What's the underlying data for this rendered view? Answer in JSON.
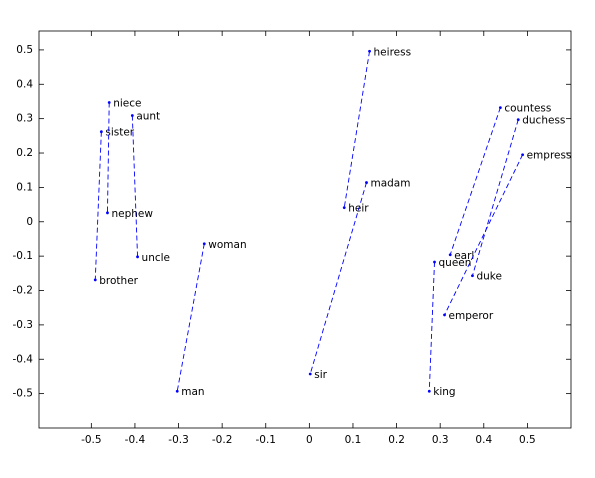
{
  "chart_data": {
    "type": "scatter",
    "color": "#0000ff",
    "xlim": [
      -0.62,
      0.6
    ],
    "ylim": [
      -0.6,
      0.555
    ],
    "xticks": [
      -0.5,
      -0.4,
      -0.3,
      -0.2,
      -0.1,
      0,
      0.1,
      0.2,
      0.3,
      0.4,
      0.5
    ],
    "yticks": [
      -0.5,
      -0.4,
      -0.3,
      -0.2,
      -0.1,
      0,
      0.1,
      0.2,
      0.3,
      0.4,
      0.5
    ],
    "series": [
      {
        "labels": [
          "sister",
          "brother"
        ],
        "x": [
          -0.477,
          -0.491
        ],
        "y": [
          0.262,
          -0.169
        ]
      },
      {
        "labels": [
          "niece",
          "nephew"
        ],
        "x": [
          -0.459,
          -0.463
        ],
        "y": [
          0.347,
          0.026
        ]
      },
      {
        "labels": [
          "aunt",
          "uncle"
        ],
        "x": [
          -0.406,
          -0.394
        ],
        "y": [
          0.309,
          -0.102
        ]
      },
      {
        "labels": [
          "woman",
          "man"
        ],
        "x": [
          -0.241,
          -0.303
        ],
        "y": [
          -0.064,
          -0.493
        ]
      },
      {
        "labels": [
          "heiress",
          "heir"
        ],
        "x": [
          0.138,
          0.08
        ],
        "y": [
          0.496,
          0.041
        ]
      },
      {
        "labels": [
          "madam",
          "sir"
        ],
        "x": [
          0.131,
          0.002
        ],
        "y": [
          0.114,
          -0.443
        ]
      },
      {
        "labels": [
          "countess",
          "earl"
        ],
        "x": [
          0.438,
          0.323
        ],
        "y": [
          0.332,
          -0.096
        ]
      },
      {
        "labels": [
          "duchess",
          "duke"
        ],
        "x": [
          0.479,
          0.374
        ],
        "y": [
          0.297,
          -0.157
        ]
      },
      {
        "labels": [
          "empress",
          "emperor"
        ],
        "x": [
          0.489,
          0.31
        ],
        "y": [
          0.195,
          -0.271
        ]
      },
      {
        "labels": [
          "queen",
          "king"
        ],
        "x": [
          0.287,
          0.275
        ],
        "y": [
          -0.117,
          -0.493
        ]
      }
    ]
  }
}
